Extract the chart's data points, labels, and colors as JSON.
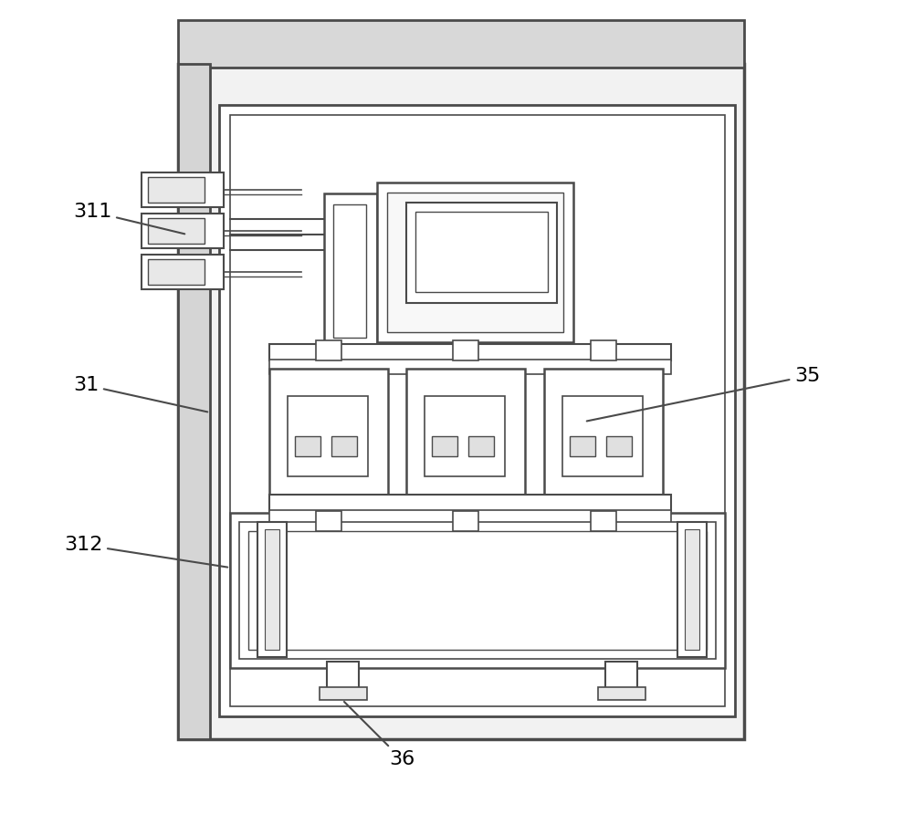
{
  "bg_color": "#ffffff",
  "lc": "#4a4a4a",
  "lw_outer": 2.0,
  "lw_mid": 1.5,
  "lw_inner": 1.0,
  "fig_width": 10.0,
  "fig_height": 8.92
}
